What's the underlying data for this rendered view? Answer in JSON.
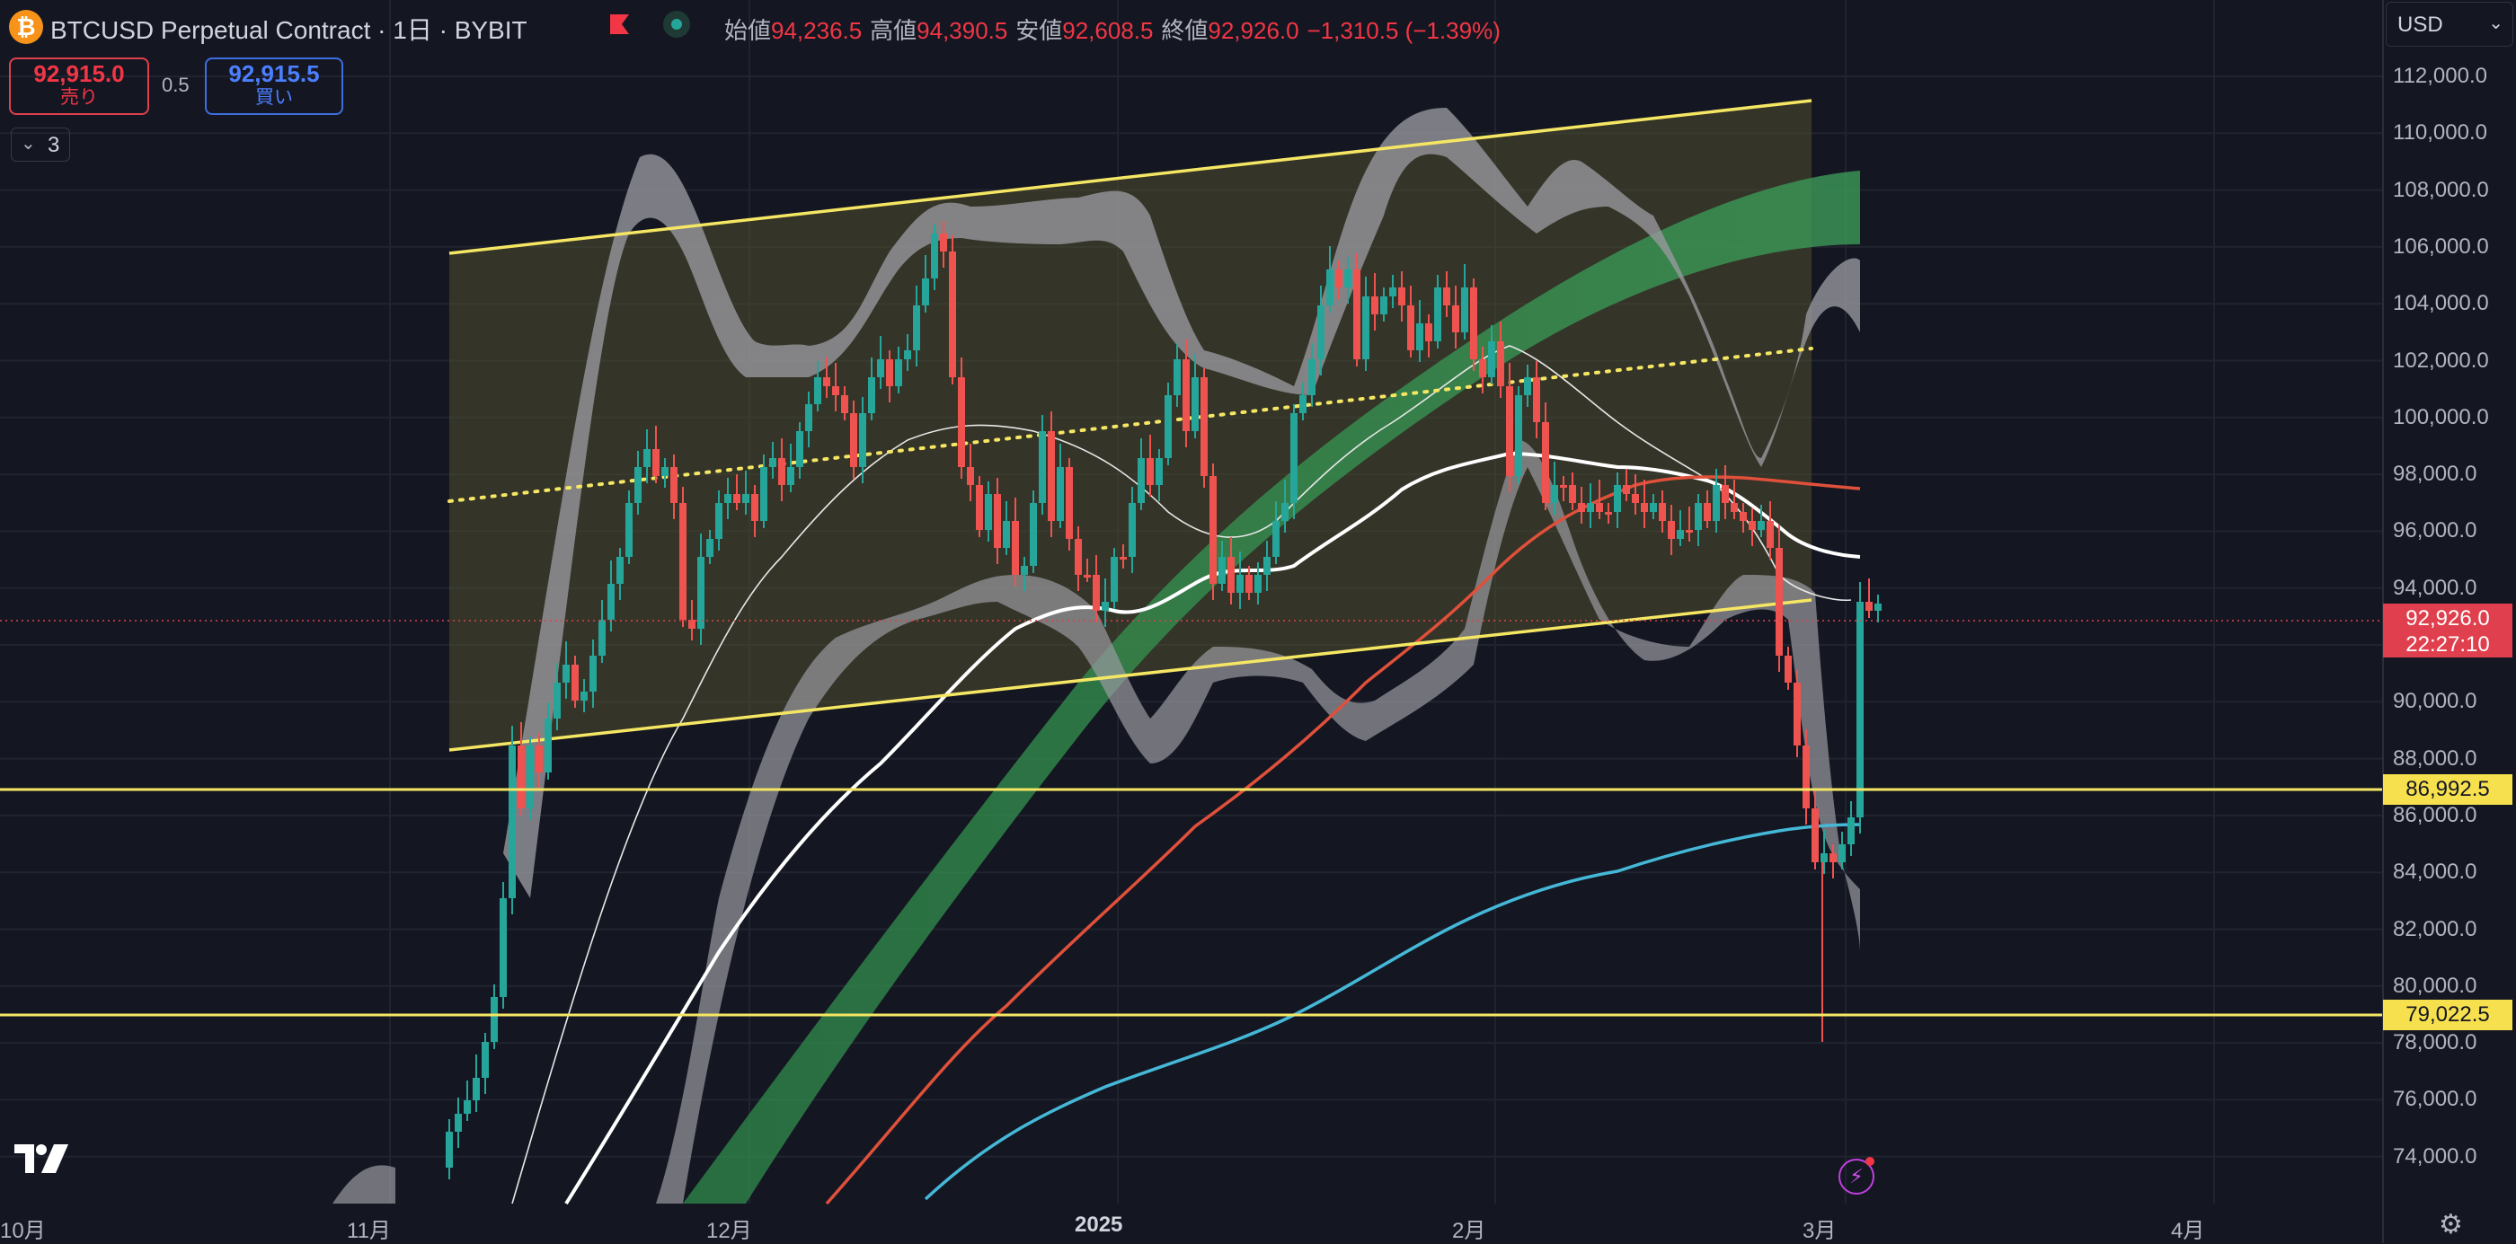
{
  "header": {
    "symbol_title": "BTCUSD Perpetual Contract · 1日 · BYBIT",
    "open_label": "始値",
    "open_value": "94,236.5",
    "high_label": "高値",
    "high_value": "94,390.5",
    "low_label": "安値",
    "low_value": "92,608.5",
    "close_label": "終値",
    "close_value": "92,926.0",
    "change": "−1,310.5 (−1.39%)"
  },
  "trade_panel": {
    "sell_price": "92,915.0",
    "sell_label": "売り",
    "spread": "0.5",
    "buy_price": "92,915.5",
    "buy_label": "買い",
    "indicators_count": "3"
  },
  "currency_selector": "USD",
  "price_axis": {
    "labels": [
      "112,000.0",
      "110,000.0",
      "108,000.0",
      "106,000.0",
      "104,000.0",
      "102,000.0",
      "100,000.0",
      "98,000.0",
      "96,000.0",
      "94,000.0",
      "90,000.0",
      "88,000.0",
      "86,000.0",
      "84,000.0",
      "82,000.0",
      "80,000.0",
      "78,000.0",
      "76,000.0",
      "74,000.0"
    ],
    "current_price": "92,926.0",
    "countdown": "22:27:10",
    "level_1": "86,992.5",
    "level_2": "79,022.5"
  },
  "time_axis": {
    "labels": [
      "10月",
      "11月",
      "12月",
      "2025",
      "2月",
      "3月",
      "4月"
    ]
  },
  "colors": {
    "background": "#141722",
    "up": "#26a69a",
    "down": "#ef5350",
    "channel": "#f5e663",
    "current_price_tag": "#e0404d",
    "level_tag": "#f7e04e",
    "ema_red": "#e0503a",
    "ema_blue": "#45b8d8"
  },
  "icons": {
    "symbol_logo": "bitcoin-logo-icon",
    "flag": "flag-icon",
    "status": "market-open-status-icon",
    "brand": "tradingview-logo-icon",
    "alerts": "lightning-alert-icon",
    "settings": "gear-icon"
  }
}
